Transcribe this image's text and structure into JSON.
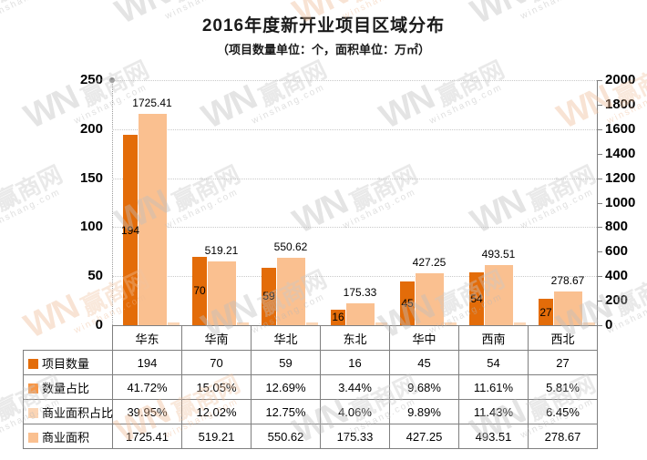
{
  "title": "2016年度新开业项目区域分布",
  "subtitle": "（项目数量单位：个，面积单位：万㎡）",
  "watermark": {
    "logo": "WN",
    "name": "赢商网",
    "domain": "winshang.com"
  },
  "colors": {
    "count_bar": "#E36C09",
    "count_pct_bar": "#F79646",
    "area_pct_bar": "#FBD5B5",
    "area_bar": "#FAC090",
    "axis_line": "#808080",
    "table_border": "#7F7F7F"
  },
  "chart_data": {
    "type": "bar",
    "title": "2016年度新开业项目区域分布",
    "subtitle": "（项目数量单位：个，面积单位：万㎡）",
    "categories": [
      "华东",
      "华南",
      "华北",
      "东北",
      "华中",
      "西南",
      "西北"
    ],
    "series": [
      {
        "name": "项目数量",
        "axis": "left",
        "color": "#E36C09",
        "values": [
          194,
          70,
          59,
          16,
          45,
          54,
          27
        ]
      },
      {
        "name": "数量占比",
        "axis": "left",
        "color": "#F79646",
        "values": [
          "41.72%",
          "15.05%",
          "12.69%",
          "3.44%",
          "9.68%",
          "11.61%",
          "5.81%"
        ]
      },
      {
        "name": "商业面积占比",
        "axis": "left",
        "color": "#FBD5B5",
        "values": [
          "39.95%",
          "12.02%",
          "12.75%",
          "4.06%",
          "9.89%",
          "11.43%",
          "6.45%"
        ]
      },
      {
        "name": "商业面积",
        "axis": "right",
        "color": "#FAC090",
        "values": [
          "1725.41",
          "519.21",
          "550.62",
          "175.33",
          "427.25",
          "493.51",
          "278.67"
        ]
      }
    ],
    "left_axis": {
      "min": 0,
      "max": 250,
      "step": 50,
      "ticks": [
        0,
        50,
        100,
        150,
        200,
        250
      ]
    },
    "right_axis": {
      "min": 0,
      "max": 2000,
      "step": 200,
      "ticks": [
        0,
        200,
        400,
        600,
        800,
        1000,
        1200,
        1400,
        1600,
        1800,
        2000
      ]
    },
    "grid": true,
    "legend_position": "table-left",
    "data_labels": {
      "count_labels": [
        "194",
        "70",
        "59",
        "16",
        "45",
        "54",
        "27"
      ],
      "area_labels": [
        "1725.41",
        "519.21",
        "550.62",
        "175.33",
        "427.25",
        "493.51",
        "278.67"
      ]
    }
  }
}
